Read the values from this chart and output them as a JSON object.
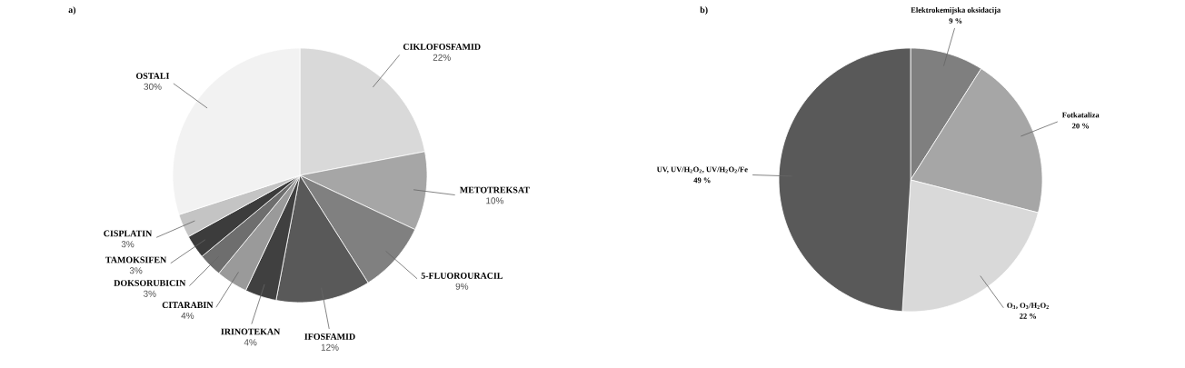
{
  "chart_data": [
    {
      "type": "pie",
      "title": "a)",
      "categories": [
        "CIKLOFOSFAMID",
        "METOTREKSAT",
        "5-FLUOROURACIL",
        "IFOSFAMID",
        "IRINOTEKAN",
        "CITARABIN",
        "DOKSORUBICIN",
        "TAMOKSIFEN",
        "CISPLATIN",
        "OSTALI"
      ],
      "values": [
        22,
        10,
        9,
        12,
        4,
        4,
        3,
        3,
        3,
        30
      ],
      "value_labels": [
        "22%",
        "10%",
        "9%",
        "12%",
        "4%",
        "4%",
        "3%",
        "3%",
        "3%",
        "30%"
      ],
      "colors": [
        "#d9d9d9",
        "#a6a6a6",
        "#808080",
        "#595959",
        "#404040",
        "#9a9a9a",
        "#6e6e6e",
        "#3c3c3c",
        "#c4c4c4",
        "#f2f2f2"
      ]
    },
    {
      "type": "pie",
      "title": "b)",
      "categories": [
        "Elektrokemijska oksidacija",
        "Fotkataliza",
        "O$_{3}$, O$_{3}$/H$_{2}$O$_{2}$",
        "UV, UV/H$_{2}$O$_{2}$, UV/H$_{2}$O$_{2}$/Fe"
      ],
      "values": [
        9,
        20,
        22,
        49
      ],
      "value_labels": [
        "9 %",
        "20 %",
        "22 %",
        "49 %"
      ],
      "colors": [
        "#7f7f7f",
        "#a6a6a6",
        "#d9d9d9",
        "#595959"
      ]
    }
  ]
}
